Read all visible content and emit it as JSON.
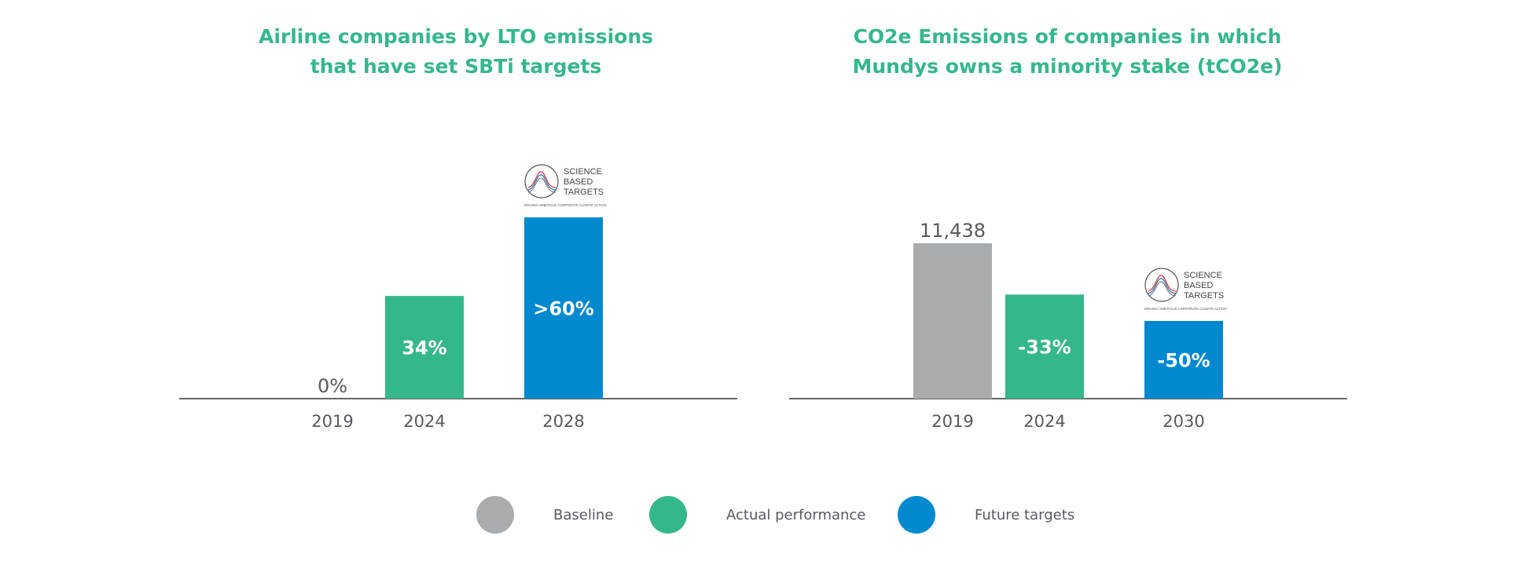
{
  "colors": {
    "baseline": "#a9acae",
    "actual": "#35b78c",
    "future": "#0089cf",
    "title": "#35b78c",
    "axis_text": "#555a5f",
    "axis_line": "#333333"
  },
  "legend": [
    {
      "label": "Baseline",
      "color": "#a9acae"
    },
    {
      "label": "Actual performance",
      "color": "#35b78c"
    },
    {
      "label": "Future targets",
      "color": "#0089cf"
    }
  ],
  "sbt_logo": {
    "line1": "SCIENCE",
    "line2": "BASED",
    "line3": "TARGETS",
    "tagline": "DRIVING AMBITIOUS CORPORATE CLIMATE ACTION"
  },
  "chart_data": [
    {
      "type": "bar",
      "title_lines": [
        "Airline companies by LTO emissions",
        "that have set SBTi targets"
      ],
      "categories": [
        "2019",
        "2024",
        "2028"
      ],
      "values": [
        0,
        34,
        60
      ],
      "labels": [
        "0%",
        "34%",
        ">60%"
      ],
      "kinds": [
        "baseline",
        "actual",
        "future"
      ],
      "ylim": [
        0,
        60
      ],
      "logo_on": "2028"
    },
    {
      "type": "bar",
      "title_lines": [
        "CO2e Emissions of companies in which",
        "Mundys owns a minority stake (tCO2e)"
      ],
      "categories": [
        "2019",
        "2024",
        "2030"
      ],
      "values": [
        11438,
        7663,
        5719
      ],
      "labels": [
        "11,438",
        "-33%",
        "-50%"
      ],
      "kinds": [
        "baseline",
        "actual",
        "future"
      ],
      "ylim": [
        0,
        11438
      ],
      "logo_on": "2030"
    }
  ]
}
